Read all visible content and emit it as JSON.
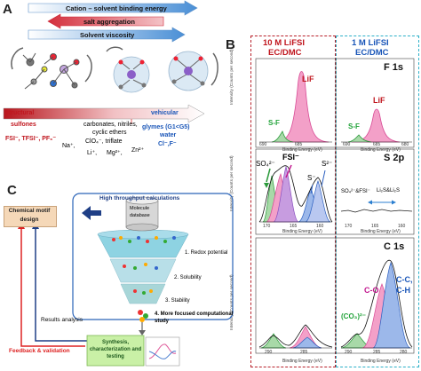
{
  "panelA": {
    "letter": "A",
    "arrows": [
      "Cation – solvent binding energy",
      "salt aggregation",
      "Solvent viscosity"
    ],
    "scale_left": "structural",
    "scale_right": "vehicular",
    "anions": "FSI⁻, TFSI⁻, PF₆⁻",
    "cations": [
      "Na⁺,",
      "Li⁺,",
      "Mg²⁺,",
      "Zn²⁺"
    ],
    "sulfones": "sulfones",
    "carbonates": "carbonates, nitriles,",
    "cyclic": "cyclic ethers",
    "clo4": "ClO₄⁻, triflate",
    "glymes": "glymes (G1<G5)",
    "water": "water",
    "cf": "Cl⁻,F⁻"
  },
  "panelB": {
    "letter": "B",
    "col1_title_1": "10 M LiFSI",
    "col1_title_2": "EC/DMC",
    "col2_title_1": "1 M LiFSI",
    "col2_title_2": "EC/DMC",
    "ylabel": "Intensity (Counts per second)",
    "xlabel": "Binding Energy (eV)",
    "rows": [
      {
        "title": "F 1s",
        "left_labels": [
          "LiF",
          "S-F"
        ],
        "right_labels": [
          "LiF",
          "S-F"
        ],
        "ticks_left": [
          "690",
          "685"
        ],
        "ticks_right": [
          "690",
          "685",
          "680"
        ]
      },
      {
        "title": "S 2p",
        "left_labels": [
          "SO₄²⁻",
          "FSI⁻",
          "S²⁻",
          "S⁻"
        ],
        "right_labels": [
          "SO₄²⁻&FSI⁻",
          "Li₂S&Li₂S"
        ],
        "ticks_left": [
          "170",
          "165",
          "160"
        ],
        "ticks_right": [
          "170",
          "165",
          "160"
        ]
      },
      {
        "title": "C 1s",
        "left_labels": [],
        "right_labels": [
          "(CO₃)²⁻",
          "C-O",
          "C-C,",
          "C-H"
        ],
        "ticks_left": [
          "290",
          "285"
        ],
        "ticks_right": [
          "290",
          "285",
          "280"
        ]
      }
    ]
  },
  "panelC": {
    "letter": "C",
    "header": "High throughput calculations",
    "db_label_1": "Molecule",
    "db_label_2": "database",
    "motif": "Chemical motif design",
    "steps": [
      "1. Redox potential",
      "2. Solubility",
      "3. Stability",
      "4. More focused computational study"
    ],
    "results": "Results analysis",
    "feedback": "Feedback & validation",
    "synthesis": "Synthesis, characterization and testing"
  },
  "colors": {
    "red": "#c0161e",
    "blue": "#1a56b8",
    "pink": "#f06aa8",
    "green": "#2ba84a"
  }
}
